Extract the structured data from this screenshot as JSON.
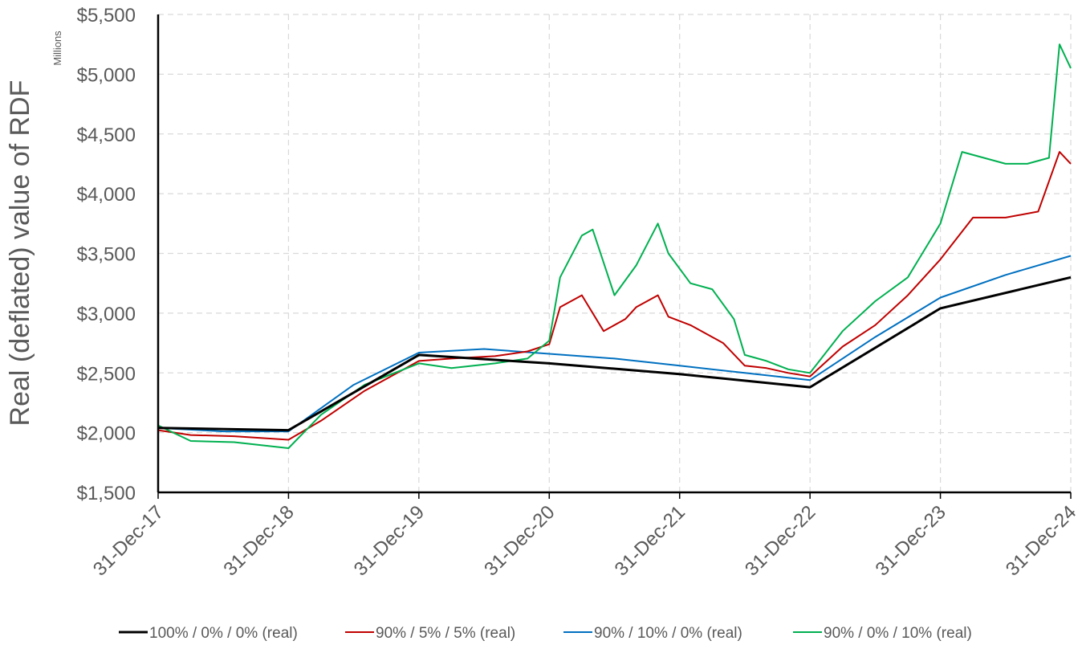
{
  "chart_data": {
    "type": "line",
    "title": "",
    "ylabel": "Real (deflated) value of RDF",
    "y_units_label": "Millions",
    "xlabel": "",
    "ylim": [
      1500,
      5500
    ],
    "yticks": [
      1500,
      2000,
      2500,
      3000,
      3500,
      4000,
      4500,
      5000,
      5500
    ],
    "ytick_labels": [
      "$1,500",
      "$2,000",
      "$2,500",
      "$3,000",
      "$3,500",
      "$4,000",
      "$4,500",
      "$5,000",
      "$5,500"
    ],
    "xlim": [
      "31-Dec-17",
      "31-Dec-24"
    ],
    "xtick_labels": [
      "31-Dec-17",
      "31-Dec-18",
      "31-Dec-19",
      "31-Dec-20",
      "31-Dec-21",
      "31-Dec-22",
      "31-Dec-23",
      "31-Dec-24"
    ],
    "grid": true,
    "legend_position": "bottom",
    "series": [
      {
        "name": "100% / 0% / 0% (real)",
        "color": "#000000",
        "x": [
          "31-Dec-17",
          "31-Dec-18",
          "31-Dec-19",
          "31-Dec-20",
          "31-Dec-21",
          "31-Dec-22",
          "31-Dec-23",
          "31-Dec-24"
        ],
        "values": [
          2040,
          2020,
          2650,
          2580,
          2490,
          2380,
          3040,
          3300
        ]
      },
      {
        "name": "90% / 5% / 5% (real)",
        "color": "#C00000",
        "x": [
          "31-Dec-17",
          "31-Mar-18",
          "31-Jul-18",
          "31-Dec-18",
          "31-Mar-19",
          "31-Jul-19",
          "31-Dec-19",
          "31-Mar-20",
          "31-Jul-20",
          "31-Oct-20",
          "31-Dec-20",
          "31-Jan-21",
          "31-Mar-21",
          "31-May-21",
          "31-Jul-21",
          "31-Aug-21",
          "31-Oct-21",
          "30-Nov-21",
          "31-Jan-22",
          "31-Mar-22",
          "31-Apr-22",
          "31-Jun-22",
          "31-Aug-22",
          "31-Oct-22",
          "31-Dec-22",
          "31-Mar-23",
          "31-Jun-23",
          "31-Sep-23",
          "31-Dec-23",
          "31-Mar-24",
          "31-Jun-24",
          "31-Sep-24",
          "30-Nov-24",
          "31-Dec-24"
        ],
        "values": [
          2020,
          1980,
          1970,
          1940,
          2100,
          2350,
          2600,
          2620,
          2640,
          2680,
          2740,
          3050,
          3150,
          2850,
          2950,
          3050,
          3150,
          2970,
          2900,
          2800,
          2750,
          2560,
          2540,
          2500,
          2470,
          2720,
          2900,
          3150,
          3450,
          3800,
          3800,
          3850,
          4350,
          4250
        ]
      },
      {
        "name": "90% / 10% / 0% (real)",
        "color": "#0070C0",
        "x": [
          "31-Dec-17",
          "31-Jun-18",
          "31-Dec-18",
          "31-Jun-19",
          "31-Dec-19",
          "31-Jun-20",
          "31-Dec-20",
          "31-Jun-21",
          "31-Dec-21",
          "31-Jun-22",
          "31-Dec-22",
          "31-Jun-23",
          "31-Dec-23",
          "31-Jun-24",
          "31-Dec-24"
        ],
        "values": [
          2040,
          2010,
          2010,
          2400,
          2670,
          2700,
          2660,
          2620,
          2560,
          2500,
          2440,
          2800,
          3130,
          3320,
          3480
        ]
      },
      {
        "name": "90% / 0% / 10% (real)",
        "color": "#00B050",
        "x": [
          "31-Dec-17",
          "31-Mar-18",
          "31-Jul-18",
          "31-Dec-18",
          "31-Mar-19",
          "31-Jul-19",
          "31-Dec-19",
          "31-Mar-20",
          "31-Jul-20",
          "31-Oct-20",
          "31-Dec-20",
          "31-Jan-21",
          "31-Mar-21",
          "31-Apr-21",
          "31-Jun-21",
          "31-Aug-21",
          "31-Oct-21",
          "30-Nov-21",
          "31-Jan-22",
          "31-Mar-22",
          "31-May-22",
          "31-Jun-22",
          "31-Aug-22",
          "31-Oct-22",
          "31-Dec-22",
          "31-Mar-23",
          "31-Jun-23",
          "31-Sep-23",
          "31-Dec-23",
          "31-Feb-24",
          "31-Apr-24",
          "31-Jun-24",
          "31-Aug-24",
          "31-Oct-24",
          "30-Nov-24",
          "31-Dec-24"
        ],
        "values": [
          2060,
          1930,
          1920,
          1870,
          2150,
          2400,
          2580,
          2540,
          2580,
          2620,
          2770,
          3300,
          3650,
          3700,
          3150,
          3400,
          3750,
          3500,
          3250,
          3200,
          2950,
          2650,
          2600,
          2530,
          2500,
          2850,
          3100,
          3300,
          3750,
          4350,
          4300,
          4250,
          4250,
          4300,
          5250,
          5050
        ]
      }
    ]
  }
}
